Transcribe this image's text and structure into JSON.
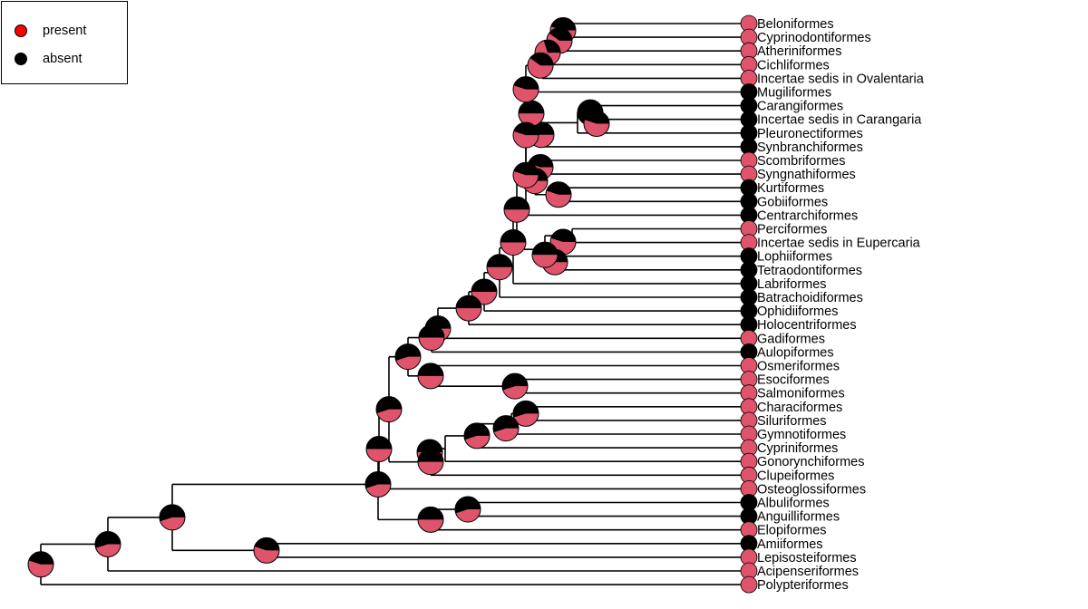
{
  "legend": {
    "present_label": "present",
    "absent_label": "absent"
  },
  "colors": {
    "present": "#DF536B",
    "absent": "#000000",
    "legend_present": "#FF0000"
  },
  "tips": [
    {
      "name": "Beloniformes",
      "state": "present"
    },
    {
      "name": "Cyprinodontiformes",
      "state": "present"
    },
    {
      "name": "Atheriniformes",
      "state": "present"
    },
    {
      "name": "Cichliformes",
      "state": "present"
    },
    {
      "name": "Incertae sedis in Ovalentaria",
      "state": "present"
    },
    {
      "name": "Mugiliformes",
      "state": "absent"
    },
    {
      "name": "Carangiformes",
      "state": "absent"
    },
    {
      "name": "Incertae sedis in Carangaria",
      "state": "absent"
    },
    {
      "name": "Pleuronectiformes",
      "state": "absent"
    },
    {
      "name": "Synbranchiformes",
      "state": "absent"
    },
    {
      "name": "Scombriformes",
      "state": "present"
    },
    {
      "name": "Syngnathiformes",
      "state": "present"
    },
    {
      "name": "Kurtiformes",
      "state": "absent"
    },
    {
      "name": "Gobiiformes",
      "state": "absent"
    },
    {
      "name": "Centrarchiformes",
      "state": "absent"
    },
    {
      "name": "Perciformes",
      "state": "present"
    },
    {
      "name": "Incertae sedis in Eupercaria",
      "state": "present"
    },
    {
      "name": "Lophiiformes",
      "state": "absent"
    },
    {
      "name": "Tetraodontiformes",
      "state": "absent"
    },
    {
      "name": "Labriformes",
      "state": "absent"
    },
    {
      "name": "Batrachoidiformes",
      "state": "absent"
    },
    {
      "name": "Ophidiiformes",
      "state": "absent"
    },
    {
      "name": "Holocentriformes",
      "state": "absent"
    },
    {
      "name": "Gadiformes",
      "state": "present"
    },
    {
      "name": "Aulopiformes",
      "state": "absent"
    },
    {
      "name": "Osmeriformes",
      "state": "present"
    },
    {
      "name": "Esociformes",
      "state": "present"
    },
    {
      "name": "Salmoniformes",
      "state": "present"
    },
    {
      "name": "Characiformes",
      "state": "present"
    },
    {
      "name": "Siluriformes",
      "state": "present"
    },
    {
      "name": "Gymnotiformes",
      "state": "present"
    },
    {
      "name": "Cypriniformes",
      "state": "present"
    },
    {
      "name": "Gonorynchiformes",
      "state": "present"
    },
    {
      "name": "Clupeiformes",
      "state": "present"
    },
    {
      "name": "Osteoglossiformes",
      "state": "present"
    },
    {
      "name": "Albuliformes",
      "state": "absent"
    },
    {
      "name": "Anguilliformes",
      "state": "absent"
    },
    {
      "name": "Elopiformes",
      "state": "present"
    },
    {
      "name": "Amiiformes",
      "state": "absent"
    },
    {
      "name": "Lepisosteiformes",
      "state": "present"
    },
    {
      "name": "Acipenseriformes",
      "state": "present"
    },
    {
      "name": "Polypteriformes",
      "state": "present"
    }
  ],
  "nodes": [
    {
      "id": "n1",
      "children": [
        "Beloniformes",
        "Cyprinodontiformes"
      ],
      "p_present": 0.55
    },
    {
      "id": "n2",
      "children": [
        "n1",
        "Atheriniformes"
      ],
      "p_present": 0.6
    },
    {
      "id": "n3",
      "children": [
        "n2",
        "Cichliformes"
      ],
      "p_present": 0.7
    },
    {
      "id": "n4",
      "children": [
        "n3",
        "Incertae sedis in Ovalentaria"
      ],
      "p_present": 0.6
    },
    {
      "id": "n5",
      "children": [
        "Carangiformes",
        "Incertae sedis in Carangaria"
      ],
      "p_present": 0.3
    },
    {
      "id": "n6",
      "children": [
        "n5",
        "Pleuronectiformes"
      ],
      "p_present": 0.55
    },
    {
      "id": "n7",
      "children": [
        "n6",
        "Synbranchiformes"
      ],
      "p_present": 0.5
    },
    {
      "id": "n8",
      "children": [
        "Mugiliformes",
        "n7"
      ],
      "p_present": 0.5
    },
    {
      "id": "n9",
      "children": [
        "n4",
        "n8"
      ],
      "p_present": 0.55
    },
    {
      "id": "n10",
      "children": [
        "Scombriformes",
        "Syngnathiformes"
      ],
      "p_present": 0.55
    },
    {
      "id": "n11",
      "children": [
        "Kurtiformes",
        "Gobiiformes"
      ],
      "p_present": 0.55
    },
    {
      "id": "n12",
      "children": [
        "n10",
        "n11"
      ],
      "p_present": 0.55
    },
    {
      "id": "n13",
      "children": [
        "n9",
        "n12"
      ],
      "p_present": 0.55
    },
    {
      "id": "n14",
      "children": [
        "n13",
        "Centrarchiformes"
      ],
      "p_present": 0.55
    },
    {
      "id": "n15",
      "children": [
        "Perciformes",
        "Incertae sedis in Eupercaria"
      ],
      "p_present": 0.55
    },
    {
      "id": "n16",
      "children": [
        "Lophiiformes",
        "Tetraodontiformes"
      ],
      "p_present": 0.5
    },
    {
      "id": "n17",
      "children": [
        "n15",
        "n16"
      ],
      "p_present": 0.5
    },
    {
      "id": "n18",
      "children": [
        "n14",
        "n17"
      ],
      "p_present": 0.5
    },
    {
      "id": "n19",
      "children": [
        "n18",
        "Labriformes"
      ],
      "p_present": 0.5
    },
    {
      "id": "n20",
      "children": [
        "n19",
        "Batrachoidiformes"
      ],
      "p_present": 0.5
    },
    {
      "id": "n21",
      "children": [
        "n20",
        "Ophidiiformes"
      ],
      "p_present": 0.5
    },
    {
      "id": "n22",
      "children": [
        "n21",
        "Holocentriformes"
      ],
      "p_present": 0.5
    },
    {
      "id": "n23",
      "children": [
        "n22",
        "Gadiformes"
      ],
      "p_present": 0.5
    },
    {
      "id": "n24",
      "children": [
        "n23",
        "Aulopiformes"
      ],
      "p_present": 0.5
    },
    {
      "id": "n25",
      "children": [
        "Esociformes",
        "Salmoniformes"
      ],
      "p_present": 0.45
    },
    {
      "id": "n26",
      "children": [
        "Osmeriformes",
        "n25"
      ],
      "p_present": 0.5
    },
    {
      "id": "n27",
      "children": [
        "n24",
        "n26"
      ],
      "p_present": 0.45
    },
    {
      "id": "n28",
      "children": [
        "Characiformes",
        "Siluriformes"
      ],
      "p_present": 0.45
    },
    {
      "id": "n29",
      "children": [
        "n28",
        "Gymnotiformes"
      ],
      "p_present": 0.45
    },
    {
      "id": "n30",
      "children": [
        "n29",
        "Cypriniformes"
      ],
      "p_present": 0.45
    },
    {
      "id": "n31",
      "children": [
        "n30",
        "Gonorynchiformes"
      ],
      "p_present": 0.5
    },
    {
      "id": "n32",
      "children": [
        "n31",
        "Clupeiformes"
      ],
      "p_present": 0.5
    },
    {
      "id": "n33",
      "children": [
        "n27",
        "n32"
      ],
      "p_present": 0.45
    },
    {
      "id": "n34",
      "children": [
        "Albuliformes",
        "Anguilliformes"
      ],
      "p_present": 0.45
    },
    {
      "id": "n35",
      "children": [
        "n34",
        "Elopiformes"
      ],
      "p_present": 0.5
    },
    {
      "id": "n36",
      "children": [
        "n33",
        "Osteoglossiformes"
      ],
      "p_present": 0.5
    },
    {
      "id": "n37",
      "children": [
        "n36",
        "n35"
      ],
      "p_present": 0.45
    },
    {
      "id": "n38",
      "children": [
        "Amiiformes",
        "Lepisosteiformes"
      ],
      "p_present": 0.55
    },
    {
      "id": "n39",
      "children": [
        "n37",
        "n38"
      ],
      "p_present": 0.45
    },
    {
      "id": "n40",
      "children": [
        "n39",
        "Acipenseriformes"
      ],
      "p_present": 0.45
    },
    {
      "id": "n41",
      "children": [
        "n40",
        "Polypteriformes"
      ],
      "p_present": 0.55
    }
  ]
}
